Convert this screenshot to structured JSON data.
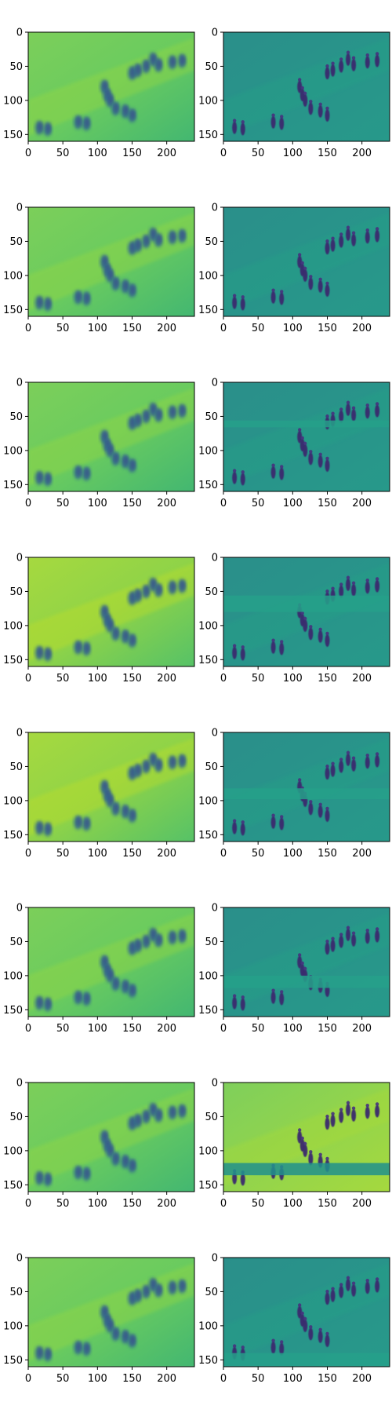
{
  "figure": {
    "rows": 8,
    "cols": 2,
    "colormap": "viridis",
    "background": "#ffffff"
  },
  "chart_data": [
    {
      "type": "heatmap",
      "row": 1,
      "col": 1,
      "style": "reconstruction",
      "bands": [],
      "xlim": [
        0,
        240
      ],
      "ylim": [
        160,
        0
      ],
      "xticks": [
        0,
        50,
        100,
        150,
        200
      ],
      "yticks": [
        0,
        50,
        100,
        150
      ],
      "xtick_labels": [
        "0",
        "50",
        "100",
        "150",
        "200"
      ],
      "ytick_labels": [
        "0",
        "50",
        "100",
        "150"
      ],
      "grid": false
    },
    {
      "type": "heatmap",
      "row": 1,
      "col": 2,
      "style": "detail",
      "bands": [],
      "xlim": [
        0,
        240
      ],
      "ylim": [
        160,
        0
      ],
      "xticks": [
        0,
        50,
        100,
        150,
        200
      ],
      "yticks": [
        0,
        50,
        100,
        150
      ],
      "xtick_labels": [
        "0",
        "50",
        "100",
        "150",
        "200"
      ],
      "ytick_labels": [
        "0",
        "50",
        "100",
        "150"
      ],
      "grid": false
    },
    {
      "type": "heatmap",
      "row": 2,
      "col": 1,
      "style": "reconstruction",
      "bands": [],
      "xlim": [
        0,
        240
      ],
      "ylim": [
        160,
        0
      ],
      "xticks": [
        0,
        50,
        100,
        150,
        200
      ],
      "yticks": [
        0,
        50,
        100,
        150
      ],
      "xtick_labels": [
        "0",
        "50",
        "100",
        "150",
        "200"
      ],
      "ytick_labels": [
        "0",
        "50",
        "100",
        "150"
      ],
      "grid": false
    },
    {
      "type": "heatmap",
      "row": 2,
      "col": 2,
      "style": "detail",
      "bands": [],
      "xlim": [
        0,
        240
      ],
      "ylim": [
        160,
        0
      ],
      "xticks": [
        0,
        50,
        100,
        150,
        200
      ],
      "yticks": [
        0,
        50,
        100,
        150
      ],
      "xtick_labels": [
        "0",
        "50",
        "100",
        "150",
        "200"
      ],
      "ytick_labels": [
        "0",
        "50",
        "100",
        "150"
      ],
      "grid": false
    },
    {
      "type": "heatmap",
      "row": 3,
      "col": 1,
      "style": "reconstruction",
      "bands": [],
      "xlim": [
        0,
        240
      ],
      "ylim": [
        160,
        0
      ],
      "xticks": [
        0,
        50,
        100,
        150,
        200
      ],
      "yticks": [
        0,
        50,
        100,
        150
      ],
      "xtick_labels": [
        "0",
        "50",
        "100",
        "150",
        "200"
      ],
      "ytick_labels": [
        "0",
        "50",
        "100",
        "150"
      ],
      "grid": false
    },
    {
      "type": "heatmap",
      "row": 3,
      "col": 2,
      "style": "detail",
      "bands": [
        [
          56,
          66
        ]
      ],
      "xlim": [
        0,
        240
      ],
      "ylim": [
        160,
        0
      ],
      "xticks": [
        0,
        50,
        100,
        150,
        200
      ],
      "yticks": [
        0,
        50,
        100,
        150
      ],
      "xtick_labels": [
        "0",
        "50",
        "100",
        "150",
        "200"
      ],
      "ytick_labels": [
        "0",
        "50",
        "100",
        "150"
      ],
      "grid": false
    },
    {
      "type": "heatmap",
      "row": 4,
      "col": 1,
      "style": "reconstruction-bright",
      "bands": [],
      "xlim": [
        0,
        240
      ],
      "ylim": [
        160,
        0
      ],
      "xticks": [
        0,
        50,
        100,
        150,
        200
      ],
      "yticks": [
        0,
        50,
        100,
        150
      ],
      "xtick_labels": [
        "0",
        "50",
        "100",
        "150",
        "200"
      ],
      "ytick_labels": [
        "0",
        "50",
        "100",
        "150"
      ],
      "grid": false
    },
    {
      "type": "heatmap",
      "row": 4,
      "col": 2,
      "style": "detail",
      "bands": [
        [
          56,
          80
        ]
      ],
      "xlim": [
        0,
        240
      ],
      "ylim": [
        160,
        0
      ],
      "xticks": [
        0,
        50,
        100,
        150,
        200
      ],
      "yticks": [
        0,
        50,
        100,
        150
      ],
      "xtick_labels": [
        "0",
        "50",
        "100",
        "150",
        "200"
      ],
      "ytick_labels": [
        "0",
        "50",
        "100",
        "150"
      ],
      "grid": false
    },
    {
      "type": "heatmap",
      "row": 5,
      "col": 1,
      "style": "reconstruction-bright",
      "bands": [],
      "xlim": [
        0,
        240
      ],
      "ylim": [
        160,
        0
      ],
      "xticks": [
        0,
        50,
        100,
        150,
        200
      ],
      "yticks": [
        0,
        50,
        100,
        150
      ],
      "xtick_labels": [
        "0",
        "50",
        "100",
        "150",
        "200"
      ],
      "ytick_labels": [
        "0",
        "50",
        "100",
        "150"
      ],
      "grid": false
    },
    {
      "type": "heatmap",
      "row": 5,
      "col": 2,
      "style": "detail",
      "bands": [
        [
          82,
          98
        ]
      ],
      "xlim": [
        0,
        240
      ],
      "ylim": [
        160,
        0
      ],
      "xticks": [
        0,
        50,
        100,
        150,
        200
      ],
      "yticks": [
        0,
        50,
        100,
        150
      ],
      "xtick_labels": [
        "0",
        "50",
        "100",
        "150",
        "200"
      ],
      "ytick_labels": [
        "0",
        "50",
        "100",
        "150"
      ],
      "grid": false
    },
    {
      "type": "heatmap",
      "row": 6,
      "col": 1,
      "style": "reconstruction",
      "bands": [],
      "xlim": [
        0,
        240
      ],
      "ylim": [
        160,
        0
      ],
      "xticks": [
        0,
        50,
        100,
        150,
        200
      ],
      "yticks": [
        0,
        50,
        100,
        150
      ],
      "xtick_labels": [
        "0",
        "50",
        "100",
        "150",
        "200"
      ],
      "ytick_labels": [
        "0",
        "50",
        "100",
        "150"
      ],
      "grid": false
    },
    {
      "type": "heatmap",
      "row": 6,
      "col": 2,
      "style": "detail",
      "bands": [
        [
          100,
          118
        ]
      ],
      "xlim": [
        0,
        240
      ],
      "ylim": [
        160,
        0
      ],
      "xticks": [
        0,
        50,
        100,
        150,
        200
      ],
      "yticks": [
        0,
        50,
        100,
        150
      ],
      "xtick_labels": [
        "0",
        "50",
        "100",
        "150",
        "200"
      ],
      "ytick_labels": [
        "0",
        "50",
        "100",
        "150"
      ],
      "grid": false
    },
    {
      "type": "heatmap",
      "row": 7,
      "col": 1,
      "style": "reconstruction",
      "bands": [],
      "xlim": [
        0,
        240
      ],
      "ylim": [
        160,
        0
      ],
      "xticks": [
        0,
        50,
        100,
        150,
        200
      ],
      "yticks": [
        0,
        50,
        100,
        150
      ],
      "xtick_labels": [
        "0",
        "50",
        "100",
        "150",
        "200"
      ],
      "ytick_labels": [
        "0",
        "50",
        "100",
        "150"
      ],
      "grid": false
    },
    {
      "type": "heatmap",
      "row": 7,
      "col": 2,
      "style": "detail-bright",
      "bands": [
        [
          118,
          136
        ]
      ],
      "xlim": [
        0,
        240
      ],
      "ylim": [
        160,
        0
      ],
      "xticks": [
        0,
        50,
        100,
        150,
        200
      ],
      "yticks": [
        0,
        50,
        100,
        150
      ],
      "xtick_labels": [
        "0",
        "50",
        "100",
        "150",
        "200"
      ],
      "ytick_labels": [
        "0",
        "50",
        "100",
        "150"
      ],
      "grid": false
    },
    {
      "type": "heatmap",
      "row": 8,
      "col": 1,
      "style": "reconstruction",
      "bands": [],
      "xlim": [
        0,
        240
      ],
      "ylim": [
        160,
        0
      ],
      "xticks": [
        0,
        50,
        100,
        150,
        200
      ],
      "yticks": [
        0,
        50,
        100,
        150
      ],
      "xtick_labels": [
        "0",
        "50",
        "100",
        "150",
        "200"
      ],
      "ytick_labels": [
        "0",
        "50",
        "100",
        "150"
      ],
      "grid": false
    },
    {
      "type": "heatmap",
      "row": 8,
      "col": 2,
      "style": "detail",
      "bands": [
        [
          140,
          160
        ]
      ],
      "xlim": [
        0,
        240
      ],
      "ylim": [
        160,
        0
      ],
      "xticks": [
        0,
        50,
        100,
        150,
        200
      ],
      "yticks": [
        0,
        50,
        100,
        150
      ],
      "xtick_labels": [
        "0",
        "50",
        "100",
        "150",
        "200"
      ],
      "ytick_labels": [
        "0",
        "50",
        "100",
        "150"
      ],
      "grid": false
    }
  ],
  "scene": {
    "figures": [
      [
        16,
        140
      ],
      [
        28,
        142
      ],
      [
        72,
        132
      ],
      [
        84,
        134
      ],
      [
        110,
        80
      ],
      [
        114,
        92
      ],
      [
        118,
        100
      ],
      [
        126,
        112
      ],
      [
        140,
        116
      ],
      [
        150,
        122
      ],
      [
        150,
        60
      ],
      [
        158,
        56
      ],
      [
        170,
        50
      ],
      [
        180,
        40
      ],
      [
        188,
        48
      ],
      [
        208,
        44
      ],
      [
        222,
        42
      ]
    ]
  }
}
